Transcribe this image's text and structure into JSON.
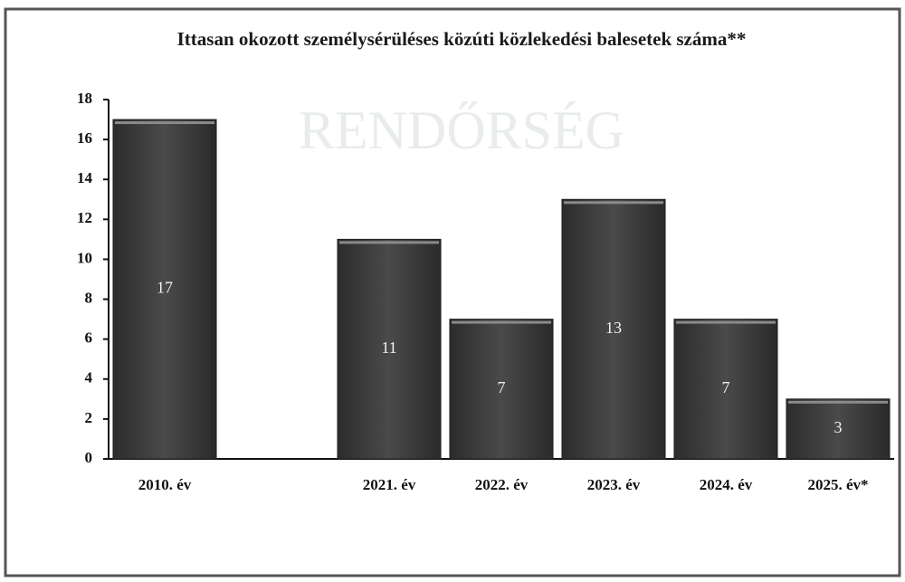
{
  "chart_data": {
    "type": "bar",
    "title": "Ittasan okozott személysérüléses közúti közlekedési balesetek száma**",
    "categories": [
      "2010. év",
      null,
      "2021. év",
      "2022. év",
      "2023. év",
      "2024. év",
      "2025. év*"
    ],
    "values": [
      17,
      null,
      11,
      7,
      13,
      7,
      3
    ],
    "color": "#3c3c3c",
    "ylim": [
      0,
      18
    ],
    "yticks": [
      0,
      2,
      4,
      6,
      8,
      10,
      12,
      14,
      16,
      18
    ],
    "grid": false
  }
}
